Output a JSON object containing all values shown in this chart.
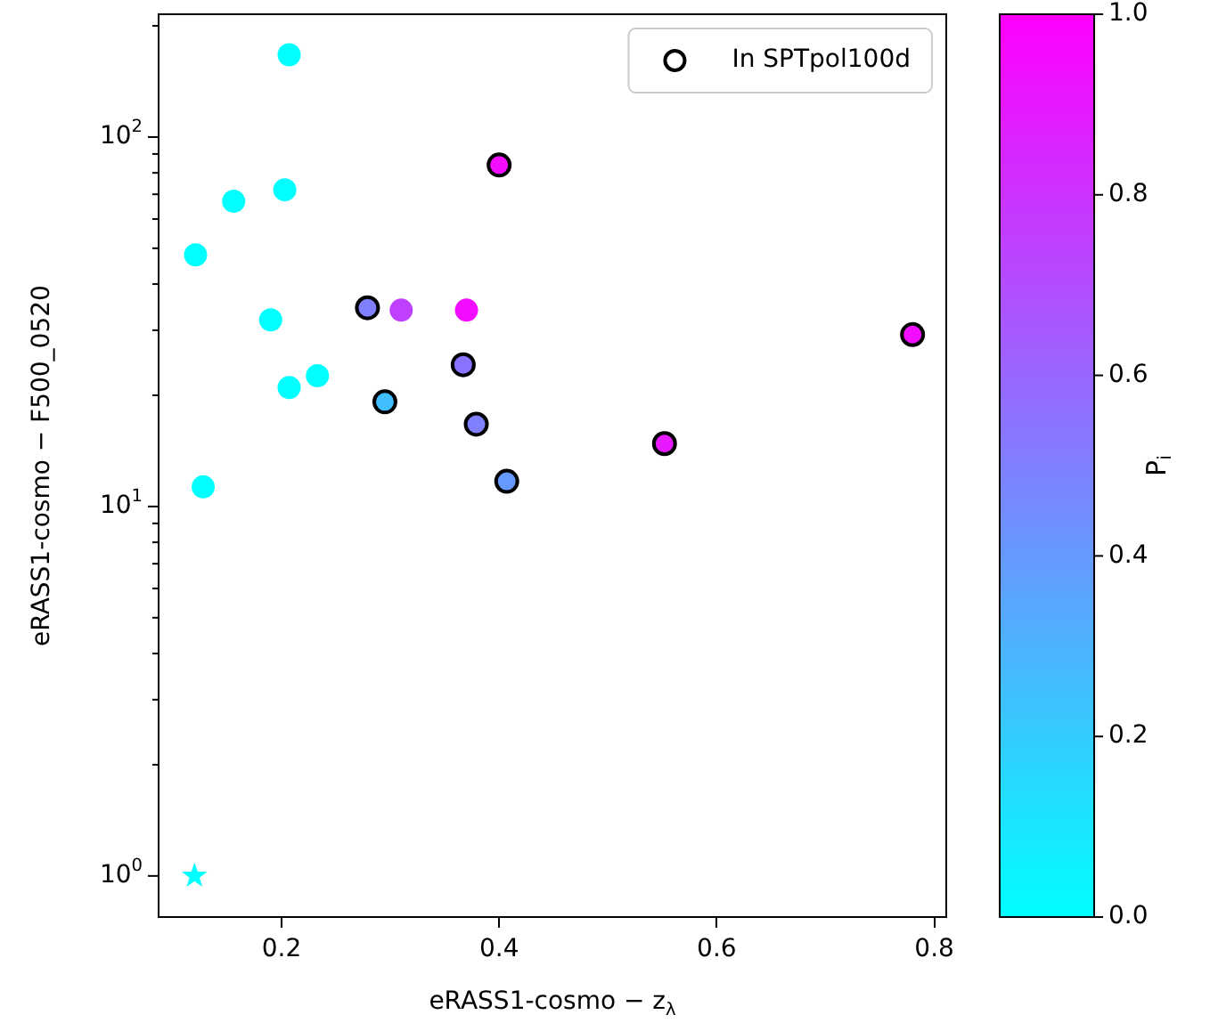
{
  "chart_data": {
    "type": "scatter",
    "xlabel": "eRASS1-cosmo − z$_{λ}$",
    "ylabel": "eRASS1-cosmo − F500_0520",
    "clabel": "P$_{i}$",
    "log": "y",
    "grid": false,
    "legend": "top right",
    "marker": "circle",
    "xlim": [
      0.087,
      0.811
    ],
    "xticks": [
      0.2,
      0.4,
      0.6,
      0.8
    ],
    "ylim": [
      0.774,
      215
    ],
    "yticks": [
      {
        "value": 1,
        "label": "10$^{0}$"
      },
      {
        "value": 2,
        "label": null
      },
      {
        "value": 3,
        "label": null
      },
      {
        "value": 4,
        "label": null
      },
      {
        "value": 5,
        "label": null
      },
      {
        "value": 6,
        "label": null
      },
      {
        "value": 7,
        "label": null
      },
      {
        "value": 8,
        "label": null
      },
      {
        "value": 9,
        "label": null
      },
      {
        "value": 10,
        "label": "10$^{1}$"
      },
      {
        "value": 20,
        "label": null
      },
      {
        "value": 30,
        "label": null
      },
      {
        "value": 40,
        "label": null
      },
      {
        "value": 50,
        "label": null
      },
      {
        "value": 60,
        "label": null
      },
      {
        "value": 70,
        "label": null
      },
      {
        "value": 80,
        "label": null
      },
      {
        "value": 90,
        "label": null
      },
      {
        "value": 100,
        "label": "10$^{2}$"
      },
      {
        "value": 200,
        "label": null
      }
    ],
    "clim": [
      0,
      1
    ],
    "cticks": [
      {
        "value": 0,
        "label": "0.0"
      },
      {
        "value": 0.2,
        "label": "0.2"
      },
      {
        "value": 0.4,
        "label": "0.4"
      },
      {
        "value": 0.6,
        "label": "0.6"
      },
      {
        "value": 0.8,
        "label": "0.8"
      },
      {
        "value": 1,
        "label": "1.0"
      }
    ],
    "series": [
      {
        "x": [
          0.207,
          0.156,
          0.203,
          0.121,
          0.19,
          0.207,
          0.233,
          0.128,
          0.31,
          0.37
        ],
        "values": [
          167,
          67,
          72,
          48,
          32,
          21,
          22.6,
          11.3,
          34,
          34
        ],
        "cvalues": [
          0,
          0,
          0,
          0,
          0,
          0,
          0,
          0,
          0.75,
          0.95
        ],
        "colors": [
          "#00ffff",
          "#00ffff",
          "#00ffff",
          "#00ffff",
          "#00ffff",
          "#00ffff",
          "#00ffff",
          "#00ffff",
          "#bf40ff",
          "#f20dff"
        ]
      },
      {
        "name": "In SPTpol100d",
        "color": "#000000",
        "x": [
          0.4,
          0.279,
          0.367,
          0.295,
          0.379,
          0.407,
          0.552,
          0.78
        ],
        "values": [
          84,
          34.5,
          24.2,
          19.2,
          16.7,
          11.7,
          14.8,
          29.2
        ],
        "cvalues": [
          0.95,
          0.5,
          0.55,
          0.25,
          0.5,
          0.4,
          0.9,
          0.95
        ]
      },
      {
        "marker": "star",
        "x": [
          0.12
        ],
        "values": [
          1
        ],
        "cvalues": [
          0
        ]
      }
    ]
  }
}
